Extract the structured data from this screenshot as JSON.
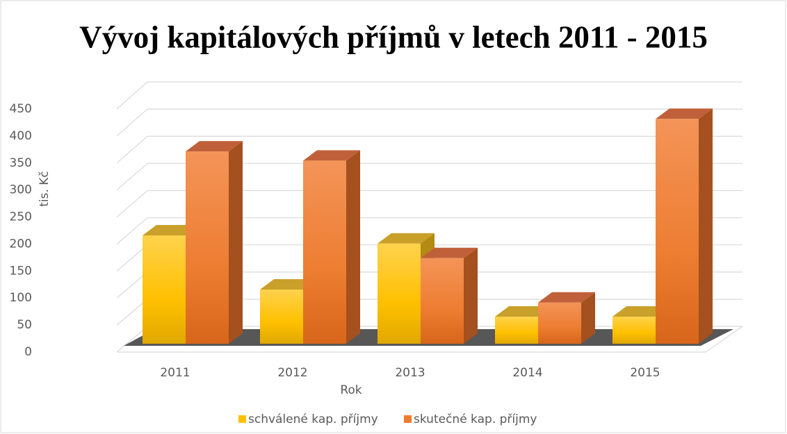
{
  "chart_data": {
    "type": "bar3d",
    "title": "Vývoj kapitálových příjmů v letech 2011 - 2015",
    "x_label": "Rok",
    "y_label": "tis. Kč",
    "categories": [
      "2011",
      "2012",
      "2013",
      "2014",
      "2015"
    ],
    "series": [
      {
        "name": "schválené kap. příjmy",
        "color": "#ffc000",
        "values": [
          200,
          100,
          185,
          50,
          50
        ]
      },
      {
        "name": "skutečné kap. příjmy",
        "color": "#ed7d31",
        "values": [
          355,
          338,
          158,
          76,
          415
        ]
      }
    ],
    "ylim": [
      0,
      450
    ],
    "yticks": [
      0,
      50,
      100,
      150,
      200,
      250,
      300,
      350,
      400,
      450
    ],
    "grid": true,
    "legend": "bottom"
  }
}
